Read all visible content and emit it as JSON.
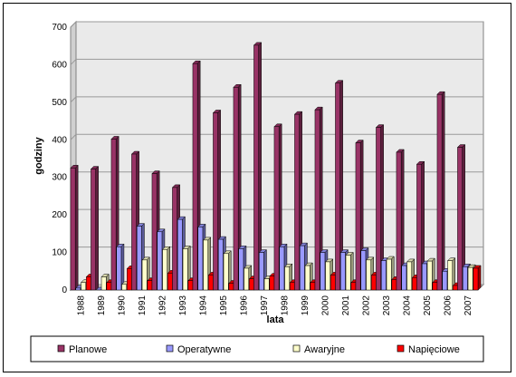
{
  "chart_data": {
    "type": "bar",
    "title": "",
    "xlabel": "lata",
    "ylabel": "godziny",
    "ylim": [
      0,
      700
    ],
    "yticks": [
      0,
      100,
      200,
      300,
      400,
      500,
      600,
      700
    ],
    "grid": true,
    "legend_position": "bottom",
    "categories": [
      "1988",
      "1989",
      "1990",
      "1991",
      "1992",
      "1993",
      "1994",
      "1995",
      "1996",
      "1997",
      "1998",
      "1999",
      "2000",
      "2001",
      "2002",
      "2003",
      "2004",
      "2005",
      "2006",
      "2007"
    ],
    "series": [
      {
        "name": "Planowe",
        "color": "#993366",
        "values": [
          325,
          322,
          402,
          362,
          310,
          273,
          603,
          472,
          540,
          652,
          435,
          468,
          480,
          551,
          392,
          433,
          367,
          335,
          521,
          380
        ]
      },
      {
        "name": "Operatywne",
        "color": "#9999ff",
        "values": [
          5,
          0,
          115,
          170,
          155,
          188,
          168,
          135,
          110,
          100,
          115,
          118,
          100,
          100,
          105,
          78,
          65,
          70,
          50,
          62
        ]
      },
      {
        "name": "Awaryjne",
        "color": "#ffffcc",
        "values": [
          20,
          35,
          15,
          80,
          108,
          110,
          133,
          97,
          58,
          30,
          62,
          65,
          75,
          93,
          80,
          82,
          75,
          77,
          78,
          60
        ]
      },
      {
        "name": "Napięciowe",
        "color": "#ff0000",
        "values": [
          35,
          20,
          57,
          25,
          45,
          25,
          40,
          18,
          30,
          37,
          20,
          20,
          40,
          20,
          40,
          28,
          33,
          20,
          12,
          58
        ]
      }
    ]
  }
}
